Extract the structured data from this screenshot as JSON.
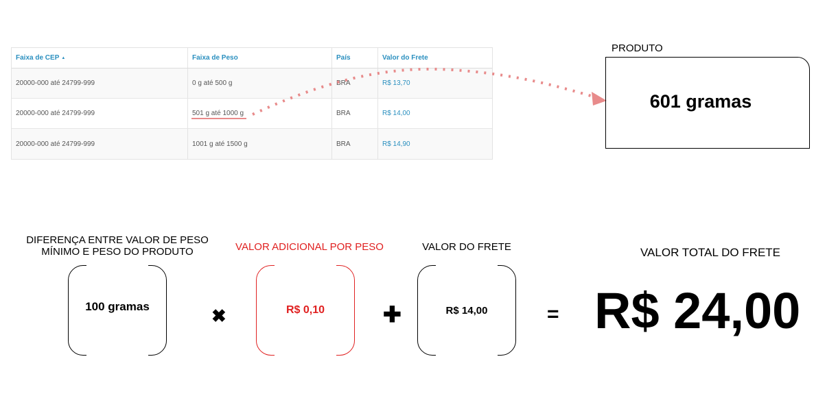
{
  "table": {
    "headers": [
      "Faixa de CEP",
      "Faixa de Peso",
      "País",
      "Valor do Frete"
    ],
    "sort_icon": "sort-asc-icon",
    "rows": [
      [
        "20000-000 até 24799-999",
        "0 g até 500 g",
        "BRA",
        "R$ 13,70"
      ],
      [
        "20000-000 até 24799-999",
        "501 g até 1000 g",
        "BRA",
        "R$ 14,00"
      ],
      [
        "20000-000 até 24799-999",
        "1001 g até 1500 g",
        "BRA",
        "R$ 14,90"
      ]
    ]
  },
  "product": {
    "label": "PRODUTO",
    "weight": "601 gramas"
  },
  "formula": {
    "diff_caption_line1": "DIFERENÇA ENTRE VALOR DE PESO",
    "diff_caption_line2": "MÍNIMO E PESO DO PRODUTO",
    "diff_value": "100 gramas",
    "add_caption": "VALOR ADICIONAL POR PESO",
    "add_value": "R$ 0,10",
    "frete_caption": "VALOR DO FRETE",
    "frete_value": "R$ 14,00",
    "total_caption": "VALOR TOTAL DO FRETE",
    "total_value": "R$ 24,00",
    "operators": {
      "times": "✖",
      "plus": "✚",
      "equals": "="
    }
  },
  "colors": {
    "link": "#2a8fbf",
    "accent_red": "#e02020",
    "arrow": "#e88b8b"
  }
}
